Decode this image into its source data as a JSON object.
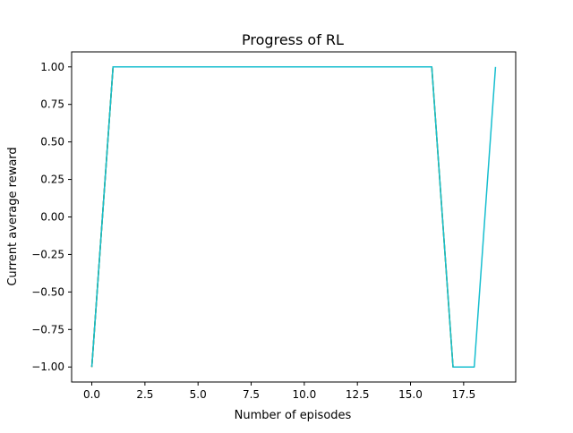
{
  "chart_data": {
    "type": "line",
    "title": "Progress of RL",
    "xlabel": "Number of episodes",
    "ylabel": "Current average reward",
    "xlim": [
      -0.95,
      19.95
    ],
    "ylim": [
      -1.1,
      1.1
    ],
    "x_ticks": [
      0.0,
      2.5,
      5.0,
      7.5,
      10.0,
      12.5,
      15.0,
      17.5
    ],
    "x_tick_labels": [
      "0.0",
      "2.5",
      "5.0",
      "7.5",
      "10.0",
      "12.5",
      "15.0",
      "17.5"
    ],
    "y_ticks": [
      -1.0,
      -0.75,
      -0.5,
      -0.25,
      0.0,
      0.25,
      0.5,
      0.75,
      1.0
    ],
    "y_tick_labels": [
      "−1.00",
      "−0.75",
      "−0.50",
      "−0.25",
      "0.00",
      "0.25",
      "0.50",
      "0.75",
      "1.00"
    ],
    "grid": false,
    "legend": false,
    "series": [
      {
        "color": "#1f77b4",
        "x": [
          0,
          1,
          2,
          3,
          4,
          5,
          6,
          7,
          8,
          9,
          10,
          11,
          12,
          13,
          14,
          15,
          16
        ],
        "y": [
          -1,
          1,
          1,
          1,
          1,
          1,
          1,
          1,
          1,
          1,
          1,
          1,
          1,
          1,
          1,
          1,
          1
        ]
      },
      {
        "color": "#ff7f0e",
        "x": [
          0,
          1,
          2,
          3,
          4,
          5,
          6,
          7,
          8,
          9,
          10,
          11,
          12,
          13,
          14,
          15,
          16,
          17
        ],
        "y": [
          -1,
          1,
          1,
          1,
          1,
          1,
          1,
          1,
          1,
          1,
          1,
          1,
          1,
          1,
          1,
          1,
          1,
          -1
        ]
      },
      {
        "color": "#2ca02c",
        "x": [
          0,
          1,
          2,
          3,
          4,
          5,
          6,
          7,
          8,
          9,
          10,
          11,
          12,
          13,
          14,
          15,
          16,
          17,
          18
        ],
        "y": [
          -1,
          1,
          1,
          1,
          1,
          1,
          1,
          1,
          1,
          1,
          1,
          1,
          1,
          1,
          1,
          1,
          1,
          -1,
          -1
        ]
      },
      {
        "color": "#17becf",
        "x": [
          0,
          1,
          2,
          3,
          4,
          5,
          6,
          7,
          8,
          9,
          10,
          11,
          12,
          13,
          14,
          15,
          16,
          17,
          18,
          19
        ],
        "y": [
          -1,
          1,
          1,
          1,
          1,
          1,
          1,
          1,
          1,
          1,
          1,
          1,
          1,
          1,
          1,
          1,
          1,
          -1,
          -1,
          1
        ]
      }
    ]
  }
}
